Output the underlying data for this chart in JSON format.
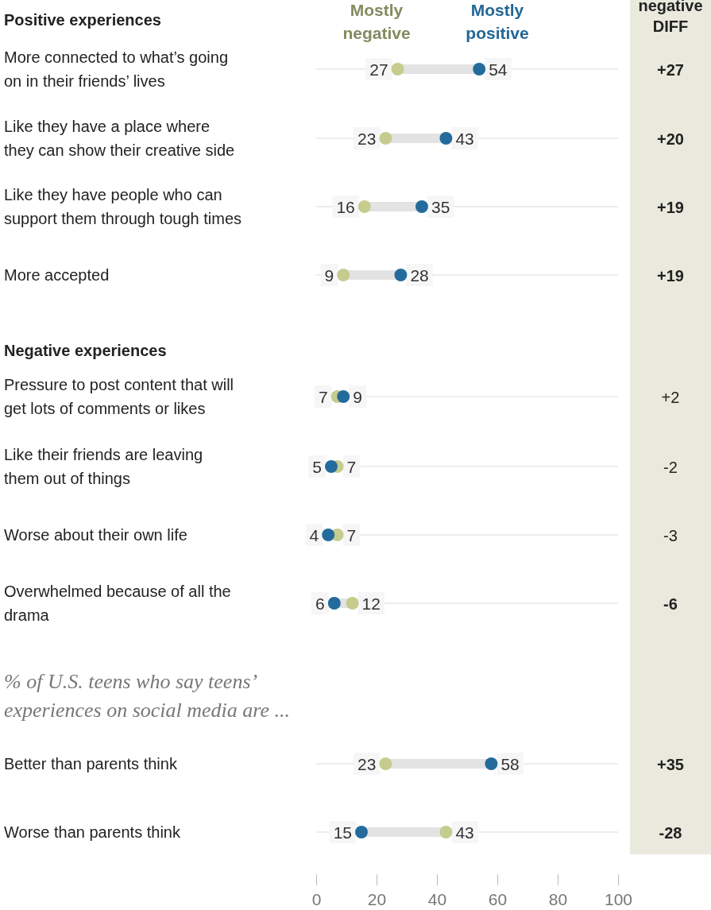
{
  "chart_data": {
    "type": "scatter",
    "orientation": "horizontal",
    "marker": "circle",
    "data_labels": true,
    "legend": "top",
    "categories": [
      "More connected to what’s going on in their friends’ lives",
      "Like they have a place where they can show their creative side",
      "Like they have people who can support them through tough times",
      "More accepted",
      "Pressure to post content that will get lots of comments or likes",
      "Like their friends are leaving them out of things",
      "Worse about their own life",
      "Overwhelmed because of all the drama",
      "Better than parents think",
      "Worse than parents think"
    ],
    "series": [
      {
        "name": "Mostly negative",
        "color": "#c5cc8e",
        "values": [
          27,
          23,
          16,
          9,
          7,
          7,
          7,
          12,
          23,
          43
        ]
      },
      {
        "name": "Mostly positive",
        "color": "#236b9c",
        "values": [
          54,
          43,
          35,
          28,
          9,
          5,
          4,
          6,
          58,
          15
        ]
      }
    ],
    "xlim": [
      0,
      100
    ],
    "xticks": [
      0,
      20,
      40,
      60,
      80,
      100
    ],
    "annotations": [
      "Positive experiences",
      "Negative experiences",
      "% of U.S. teens who say teens’ experiences on social media are ...",
      "negative DIFF",
      "+27",
      "+20",
      "+19",
      "+19",
      "+2",
      "-2",
      "-3",
      "-6",
      "+35",
      "-28"
    ],
    "grid": "y"
  }
}
